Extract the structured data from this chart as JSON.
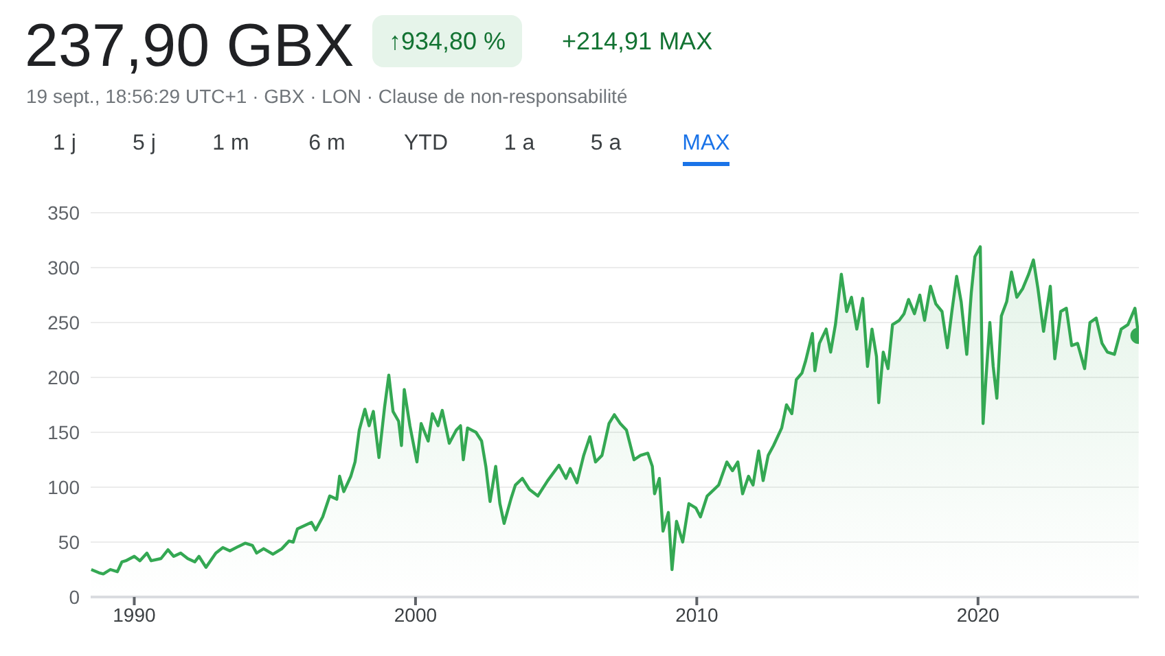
{
  "chart_data": {
    "type": "area",
    "title": "237,90 GBX",
    "subtitle": "19 sept., 18:56:29 UTC+1 · GBX · LON · Clause de non-responsabilité",
    "annotations": [
      "↑934,80 %",
      "+214,91 MAX",
      "1 j",
      "5 j",
      "1 m",
      "6 m",
      "YTD",
      "1 a",
      "5 a",
      "MAX"
    ],
    "x": [
      1988.47,
      1988.75,
      1988.9,
      1989.15,
      1989.4,
      1989.56,
      1989.7,
      1990,
      1990.2,
      1990.45,
      1990.6,
      1990.95,
      1991.2,
      1991.4,
      1991.65,
      1991.9,
      1992.15,
      1992.3,
      1992.55,
      1992.9,
      1993.15,
      1993.4,
      1993.7,
      1993.95,
      1994.2,
      1994.35,
      1994.6,
      1994.93,
      1995.25,
      1995.5,
      1995.65,
      1995.8,
      1996.05,
      1996.3,
      1996.45,
      1996.7,
      1996.95,
      1997.2,
      1997.3,
      1997.45,
      1997.7,
      1997.85,
      1998,
      1998.2,
      1998.35,
      1998.5,
      1998.7,
      1998.9,
      1999.05,
      1999.2,
      1999.4,
      1999.5,
      1999.6,
      1999.8,
      2000.05,
      2000.2,
      2000.45,
      2000.6,
      2000.8,
      2000.95,
      2001.2,
      2001.45,
      2001.6,
      2001.7,
      2001.85,
      2002.15,
      2002.35,
      2002.5,
      2002.65,
      2002.85,
      2003,
      2003.15,
      2003.4,
      2003.55,
      2003.8,
      2004.05,
      2004.35,
      2004.7,
      2005.1,
      2005.35,
      2005.5,
      2005.74,
      2005.98,
      2006.2,
      2006.4,
      2006.63,
      2006.88,
      2007.07,
      2007.28,
      2007.5,
      2007.77,
      2008,
      2008.26,
      2008.42,
      2008.5,
      2008.67,
      2008.8,
      2008.99,
      2009.12,
      2009.28,
      2009.5,
      2009.72,
      2009.97,
      2010.13,
      2010.37,
      2010.62,
      2010.78,
      2011.07,
      2011.27,
      2011.46,
      2011.63,
      2011.84,
      2012,
      2012.2,
      2012.36,
      2012.54,
      2012.73,
      2013.02,
      2013.19,
      2013.38,
      2013.54,
      2013.74,
      2013.87,
      2014.11,
      2014.2,
      2014.36,
      2014.6,
      2014.76,
      2014.93,
      2015.14,
      2015.33,
      2015.5,
      2015.69,
      2015.9,
      2016.07,
      2016.23,
      2016.39,
      2016.47,
      2016.63,
      2016.8,
      2016.96,
      2017.2,
      2017.37,
      2017.53,
      2017.74,
      2017.93,
      2018.1,
      2018.31,
      2018.5,
      2018.72,
      2018.91,
      2019.07,
      2019.24,
      2019.4,
      2019.6,
      2019.76,
      2019.89,
      2020.08,
      2020.18,
      2020.29,
      2020.42,
      2020.54,
      2020.67,
      2020.83,
      2021.02,
      2021.19,
      2021.38,
      2021.59,
      2021.8,
      2021.97,
      2022.13,
      2022.33,
      2022.57,
      2022.73,
      2022.94,
      2023.14,
      2023.33,
      2023.54,
      2023.79,
      2023.98,
      2024.2,
      2024.41,
      2024.6,
      2024.85,
      2025.09,
      2025.33,
      2025.58,
      2025.71
    ],
    "series": [
      {
        "color": "#34a853",
        "values": [
          25,
          22,
          21,
          25,
          23,
          32,
          33,
          37,
          33,
          40,
          33,
          35,
          43,
          37,
          40,
          35,
          32,
          37,
          27,
          40,
          45,
          42,
          46,
          49,
          47,
          40,
          44,
          39,
          44,
          51,
          50,
          62,
          65,
          68,
          61,
          73,
          92,
          89,
          110,
          96,
          110,
          123,
          152,
          171,
          156,
          169,
          127,
          173,
          202,
          169,
          160,
          138,
          189,
          156,
          123,
          158,
          142,
          167,
          156,
          170,
          140,
          152,
          156,
          125,
          154,
          150,
          142,
          119,
          87,
          119,
          85,
          67,
          90,
          102,
          108,
          98,
          92,
          106,
          120,
          108,
          117,
          104,
          129,
          146,
          123,
          129,
          158,
          166,
          158,
          152,
          125,
          129,
          131,
          119,
          94,
          108,
          60,
          77,
          25,
          69,
          50,
          85,
          81,
          73,
          92,
          98,
          102,
          123,
          115,
          123,
          94,
          110,
          102,
          133,
          106,
          129,
          138,
          154,
          175,
          167,
          198,
          204,
          215,
          240,
          206,
          231,
          244,
          223,
          248,
          294,
          260,
          273,
          244,
          272,
          210,
          244,
          219,
          177,
          223,
          208,
          248,
          252,
          258,
          271,
          258,
          275,
          252,
          283,
          267,
          260,
          227,
          260,
          292,
          269,
          221,
          277,
          310,
          319,
          158,
          202,
          250,
          210,
          181,
          256,
          269,
          296,
          273,
          281,
          294,
          307,
          281,
          242,
          283,
          217,
          260,
          263,
          229,
          231,
          208,
          250,
          254,
          231,
          223,
          221,
          244,
          248,
          263,
          237.9
        ]
      }
    ],
    "xlim": [
      1988.45,
      2025.72
    ],
    "xticks": [
      1990,
      2000,
      2010,
      2020
    ],
    "ylim": [
      0,
      350
    ],
    "yticks": [
      0,
      50,
      100,
      150,
      200,
      250,
      300,
      350
    ],
    "grid": "y"
  }
}
